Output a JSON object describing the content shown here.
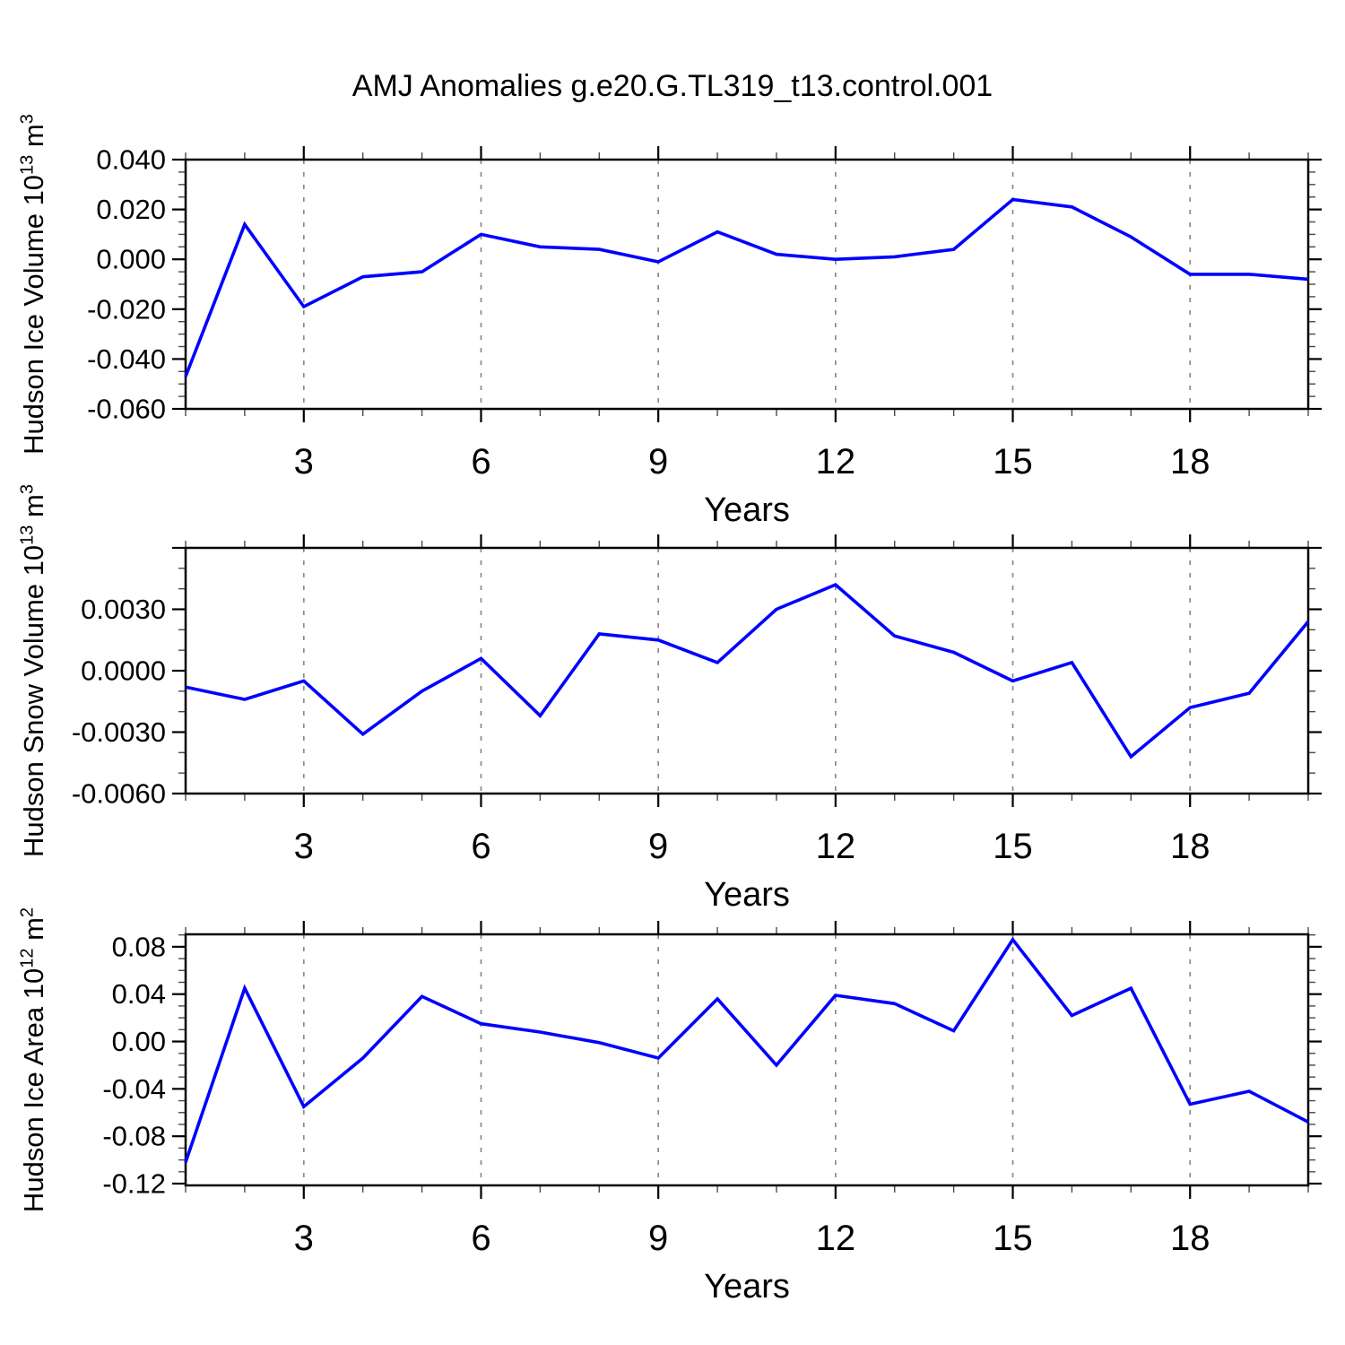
{
  "title": "AMJ Anomalies g.e20.G.TL319_t13.control.001",
  "styles": {
    "line_color": "#0000ff",
    "grid_color": "#8a8a8a",
    "axis_color": "#000000",
    "background": "#ffffff"
  },
  "chart_data": [
    {
      "type": "line",
      "panel": 1,
      "ylabel_plain": "Hudson Ice Volume 10^13 m^3",
      "ylabel": {
        "base": "Hudson Ice Volume 10",
        "exp": "13",
        "unit": " m",
        "unit_exp": "3"
      },
      "xlabel": "Years",
      "line_color": "#0000ff",
      "grid": "vertical-dashed",
      "legend": "none",
      "xlim": [
        1,
        20
      ],
      "ylim": [
        -0.06,
        0.04
      ],
      "x": [
        1,
        2,
        3,
        4,
        5,
        6,
        7,
        8,
        9,
        10,
        11,
        12,
        13,
        14,
        15,
        16,
        17,
        18,
        19,
        20
      ],
      "values": [
        -0.047,
        0.014,
        -0.019,
        -0.007,
        -0.005,
        0.01,
        0.005,
        0.004,
        -0.001,
        0.011,
        0.002,
        0.0,
        0.001,
        0.004,
        0.024,
        0.021,
        0.009,
        -0.006,
        -0.006,
        -0.008
      ],
      "yticks": [
        {
          "value": 0.04,
          "label": "0.040"
        },
        {
          "value": 0.02,
          "label": "0.020"
        },
        {
          "value": 0.0,
          "label": "0.000"
        },
        {
          "value": -0.02,
          "label": "-0.020"
        },
        {
          "value": -0.04,
          "label": "-0.040"
        },
        {
          "value": -0.06,
          "label": "-0.060"
        }
      ],
      "ytick_marks": [
        0.04,
        0.02,
        0.0,
        -0.02,
        -0.04,
        -0.06
      ],
      "y_minor_step": 0.005,
      "xticks": [
        {
          "value": 3,
          "label": "3"
        },
        {
          "value": 6,
          "label": "6"
        },
        {
          "value": 9,
          "label": "9"
        },
        {
          "value": 12,
          "label": "12"
        },
        {
          "value": 15,
          "label": "15"
        },
        {
          "value": 18,
          "label": "18"
        }
      ],
      "x_minor_step": 1
    },
    {
      "type": "line",
      "panel": 2,
      "ylabel_plain": "Hudson Snow Volume 10^13 m^3",
      "ylabel": {
        "base": "Hudson Snow Volume 10",
        "exp": "13",
        "unit": " m",
        "unit_exp": "3"
      },
      "xlabel": "Years",
      "line_color": "#0000ff",
      "grid": "vertical-dashed",
      "legend": "none",
      "xlim": [
        1,
        20
      ],
      "ylim": [
        -0.006,
        0.006
      ],
      "x": [
        1,
        2,
        3,
        4,
        5,
        6,
        7,
        8,
        9,
        10,
        11,
        12,
        13,
        14,
        15,
        16,
        17,
        18,
        19,
        20
      ],
      "values": [
        -0.0008,
        -0.0014,
        -0.0005,
        -0.0031,
        -0.001,
        0.0006,
        -0.0022,
        0.0018,
        0.0015,
        0.0004,
        0.003,
        0.0042,
        0.0017,
        0.0009,
        -0.0005,
        0.0004,
        -0.0042,
        -0.0018,
        -0.0011,
        0.0024
      ],
      "yticks": [
        {
          "value": 0.003,
          "label": "0.0030"
        },
        {
          "value": 0.0,
          "label": "0.0000"
        },
        {
          "value": -0.003,
          "label": "-0.0030"
        },
        {
          "value": -0.006,
          "label": "-0.0060"
        }
      ],
      "ytick_marks": [
        0.006,
        0.003,
        0.0,
        -0.003,
        -0.006
      ],
      "y_minor_step": 0.001,
      "xticks": [
        {
          "value": 3,
          "label": "3"
        },
        {
          "value": 6,
          "label": "6"
        },
        {
          "value": 9,
          "label": "9"
        },
        {
          "value": 12,
          "label": "12"
        },
        {
          "value": 15,
          "label": "15"
        },
        {
          "value": 18,
          "label": "18"
        }
      ],
      "x_minor_step": 1
    },
    {
      "type": "line",
      "panel": 3,
      "ylabel_plain": "Hudson Ice Area 10^12 m^2",
      "ylabel": {
        "base": "Hudson Ice Area 10",
        "exp": "12",
        "unit": " m",
        "unit_exp": "2"
      },
      "xlabel": "Years",
      "line_color": "#0000ff",
      "grid": "vertical-dashed",
      "legend": "none",
      "xlim": [
        1,
        20
      ],
      "ylim": [
        -0.1215,
        0.0905
      ],
      "x": [
        1,
        2,
        3,
        4,
        5,
        6,
        7,
        8,
        9,
        10,
        11,
        12,
        13,
        14,
        15,
        16,
        17,
        18,
        19,
        20
      ],
      "values": [
        -0.102,
        0.045,
        -0.055,
        -0.014,
        0.038,
        0.015,
        0.008,
        -0.001,
        -0.014,
        0.036,
        -0.02,
        0.039,
        0.032,
        0.009,
        0.086,
        0.022,
        0.045,
        -0.053,
        -0.042,
        -0.068
      ],
      "yticks": [
        {
          "value": 0.08,
          "label": "0.08"
        },
        {
          "value": 0.04,
          "label": "0.04"
        },
        {
          "value": 0.0,
          "label": "0.00"
        },
        {
          "value": -0.04,
          "label": "-0.04"
        },
        {
          "value": -0.08,
          "label": "-0.08"
        },
        {
          "value": -0.12,
          "label": "-0.12"
        }
      ],
      "ytick_marks": [
        0.08,
        0.04,
        0.0,
        -0.04,
        -0.08,
        -0.12
      ],
      "y_minor_step": 0.01,
      "xticks": [
        {
          "value": 3,
          "label": "3"
        },
        {
          "value": 6,
          "label": "6"
        },
        {
          "value": 9,
          "label": "9"
        },
        {
          "value": 12,
          "label": "12"
        },
        {
          "value": 15,
          "label": "15"
        },
        {
          "value": 18,
          "label": "18"
        }
      ],
      "x_minor_step": 1
    }
  ]
}
